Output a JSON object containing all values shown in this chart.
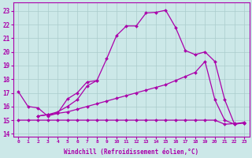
{
  "xlabel": "Windchill (Refroidissement éolien,°C)",
  "bg_color": "#cce8e8",
  "grid_color": "#aacccc",
  "line_color": "#aa00aa",
  "xlim": [
    -0.5,
    23.5
  ],
  "ylim": [
    13.8,
    23.6
  ],
  "yticks": [
    14,
    15,
    16,
    17,
    18,
    19,
    20,
    21,
    22,
    23
  ],
  "xticks": [
    0,
    1,
    2,
    3,
    4,
    5,
    6,
    7,
    8,
    9,
    10,
    11,
    12,
    13,
    14,
    15,
    16,
    17,
    18,
    19,
    20,
    21,
    22,
    23
  ],
  "lines": [
    {
      "x": [
        0,
        1,
        2,
        3,
        4,
        5,
        6,
        7,
        8,
        9,
        10,
        11,
        12,
        13,
        14,
        15,
        16,
        17,
        18,
        19,
        20,
        21,
        22,
        23
      ],
      "y": [
        15.0,
        15.0,
        15.0,
        15.0,
        15.0,
        15.0,
        15.0,
        15.0,
        15.0,
        15.0,
        15.0,
        15.0,
        15.0,
        15.0,
        15.0,
        15.0,
        15.0,
        15.0,
        15.0,
        15.0,
        15.0,
        14.7,
        14.75,
        14.8
      ]
    },
    {
      "x": [
        2,
        3,
        4,
        5,
        6,
        7,
        8,
        9,
        10,
        11,
        12,
        13,
        14,
        15,
        16,
        17,
        18,
        19,
        20,
        21,
        22,
        23
      ],
      "y": [
        15.3,
        15.4,
        15.5,
        15.6,
        15.8,
        16.0,
        16.2,
        16.4,
        16.6,
        16.8,
        17.0,
        17.2,
        17.4,
        17.6,
        17.9,
        18.2,
        18.5,
        19.3,
        16.5,
        15.0,
        14.7,
        14.8
      ]
    },
    {
      "x": [
        2,
        3,
        4,
        5,
        6,
        7,
        8,
        9,
        10,
        11,
        12,
        13,
        14,
        15,
        16,
        17,
        18,
        19,
        20,
        21,
        22,
        23
      ],
      "y": [
        15.3,
        15.4,
        15.6,
        16.0,
        16.5,
        17.5,
        17.9,
        19.5,
        21.2,
        21.9,
        21.9,
        22.85,
        22.9,
        23.05,
        21.8,
        20.1,
        19.8,
        20.0,
        19.3,
        16.5,
        14.7,
        14.85
      ]
    },
    {
      "x": [
        0,
        1,
        2,
        3,
        4,
        5,
        6,
        7,
        8
      ],
      "y": [
        17.1,
        16.0,
        15.9,
        15.3,
        15.5,
        16.55,
        17.0,
        17.8,
        17.9
      ]
    }
  ]
}
